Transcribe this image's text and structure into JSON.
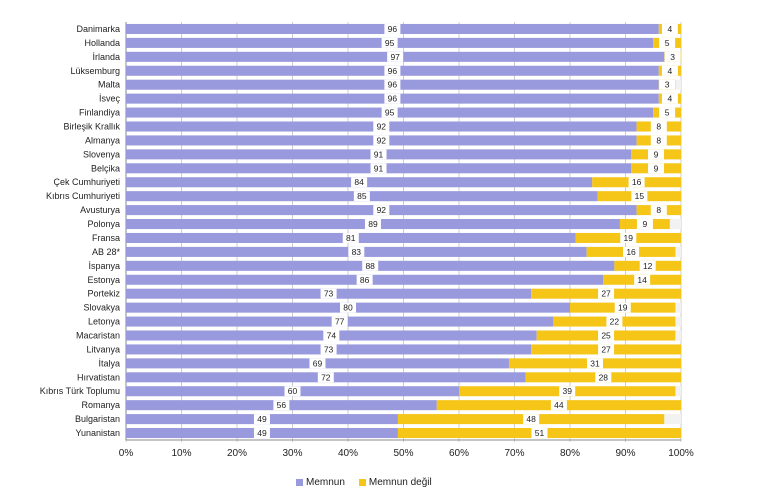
{
  "chart_data": {
    "type": "bar",
    "orientation": "horizontal",
    "stacked": true,
    "categories": [
      "Danimarka",
      "Hollanda",
      "İrlanda",
      "Lüksemburg",
      "Malta",
      "İsveç",
      "Finlandiya",
      "Birleşik Krallık",
      "Almanya",
      "Slovenya",
      "Belçika",
      "Çek Cumhuriyeti",
      "Kıbrıs Cumhuriyeti",
      "Avusturya",
      "Polonya",
      "Fransa",
      "AB 28*",
      "İspanya",
      "Estonya",
      "Portekiz",
      "Slovakya",
      "Letonya",
      "Macaristan",
      "Litvanya",
      "İtalya",
      "Hırvatistan",
      "Kıbrıs Türk Toplumu",
      "Romanya",
      "Bulgaristan",
      "Yunanistan"
    ],
    "series": [
      {
        "name": "Memnun",
        "color": "#9999dd",
        "values": [
          96,
          95,
          97,
          96,
          96,
          96,
          95,
          92,
          92,
          91,
          91,
          84,
          85,
          92,
          89,
          81,
          83,
          88,
          86,
          73,
          80,
          77,
          74,
          73,
          69,
          72,
          60,
          56,
          49,
          49
        ]
      },
      {
        "name": "Memnun değil",
        "color": "#f5c518",
        "values": [
          4,
          5,
          3,
          4,
          3,
          4,
          5,
          8,
          8,
          9,
          9,
          16,
          15,
          8,
          9,
          19,
          16,
          12,
          14,
          27,
          19,
          22,
          25,
          27,
          31,
          28,
          39,
          44,
          48,
          51
        ]
      }
    ],
    "xlim": [
      0,
      100
    ],
    "x_ticks": [
      "0%",
      "10%",
      "20%",
      "30%",
      "40%",
      "50%",
      "60%",
      "70%",
      "80%",
      "90%",
      "100%"
    ],
    "grid": true,
    "legend_position": "bottom"
  }
}
